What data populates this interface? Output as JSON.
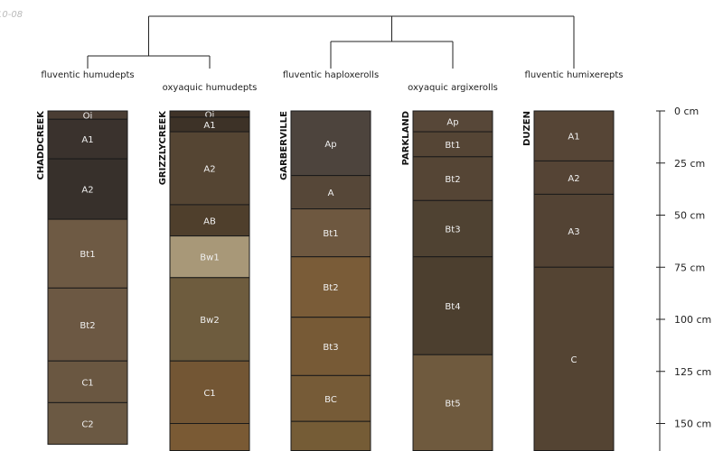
{
  "date_stamp": "10-08",
  "chart_data": {
    "type": "soil-profile-sketch",
    "depth_axis": {
      "unit": "cm",
      "ticks": [
        {
          "value": 0,
          "label": "0 cm"
        },
        {
          "value": 25,
          "label": "25 cm"
        },
        {
          "value": 50,
          "label": "50 cm"
        },
        {
          "value": 75,
          "label": "75 cm"
        },
        {
          "value": 100,
          "label": "100 cm"
        },
        {
          "value": 125,
          "label": "125 cm"
        },
        {
          "value": 150,
          "label": "150 cm"
        }
      ],
      "range": [
        0,
        163
      ]
    },
    "dendrogram": {
      "tree": [
        "CHADDCREEK",
        [
          "GRIZZLYCREEK"
        ],
        [
          "GARBERVILLE",
          "PARKLAND"
        ],
        "DUZEN"
      ],
      "groups": [
        [
          "CHADDCREEK",
          "GRIZZLYCREEK"
        ],
        [
          "GARBERVILLE",
          "PARKLAND"
        ],
        [
          "DUZEN"
        ]
      ]
    },
    "profiles": [
      {
        "name": "CHADDCREEK",
        "taxon": "fluventic humudepts",
        "horizons": [
          {
            "name": "Oi",
            "top": 0,
            "bottom": 4,
            "color": "#4a3d33"
          },
          {
            "name": "A1",
            "top": 4,
            "bottom": 23,
            "color": "#3a322d"
          },
          {
            "name": "A2",
            "top": 23,
            "bottom": 52,
            "color": "#37302b"
          },
          {
            "name": "Bt1",
            "top": 52,
            "bottom": 85,
            "color": "#6e5a44"
          },
          {
            "name": "Bt2",
            "top": 85,
            "bottom": 120,
            "color": "#6c5843"
          },
          {
            "name": "C1",
            "top": 120,
            "bottom": 140,
            "color": "#6a5741"
          },
          {
            "name": "C2",
            "top": 140,
            "bottom": 160,
            "color": "#6b5943"
          }
        ]
      },
      {
        "name": "GRIZZLYCREEK",
        "taxon": "oxyaquic humudepts",
        "horizons": [
          {
            "name": "Oi",
            "top": 0,
            "bottom": 3,
            "color": "#3f3328"
          },
          {
            "name": "A1",
            "top": 3,
            "bottom": 10,
            "color": "#3d3227"
          },
          {
            "name": "A2",
            "top": 10,
            "bottom": 45,
            "color": "#554533"
          },
          {
            "name": "AB",
            "top": 45,
            "bottom": 60,
            "color": "#4f3f2c"
          },
          {
            "name": "Bw1",
            "top": 60,
            "bottom": 80,
            "color": "#a89878"
          },
          {
            "name": "Bw2",
            "top": 80,
            "bottom": 120,
            "color": "#6e5c3e"
          },
          {
            "name": "C1",
            "top": 120,
            "bottom": 150,
            "color": "#735634"
          },
          {
            "name": "",
            "top": 150,
            "bottom": 163,
            "color": "#7a5a34"
          }
        ]
      },
      {
        "name": "GARBERVILLE",
        "taxon": "fluventic haploxerolls",
        "horizons": [
          {
            "name": "Ap",
            "top": 0,
            "bottom": 31,
            "color": "#4d443d"
          },
          {
            "name": "A",
            "top": 31,
            "bottom": 47,
            "color": "#564738"
          },
          {
            "name": "Bt1",
            "top": 47,
            "bottom": 70,
            "color": "#6e5840"
          },
          {
            "name": "Bt2",
            "top": 70,
            "bottom": 99,
            "color": "#7a5c38"
          },
          {
            "name": "Bt3",
            "top": 99,
            "bottom": 127,
            "color": "#775a36"
          },
          {
            "name": "BC",
            "top": 127,
            "bottom": 149,
            "color": "#765b37"
          },
          {
            "name": "",
            "top": 149,
            "bottom": 163,
            "color": "#755c36"
          }
        ]
      },
      {
        "name": "PARKLAND",
        "taxon": "oxyaquic argixerolls",
        "horizons": [
          {
            "name": "Ap",
            "top": 0,
            "bottom": 10,
            "color": "#574738"
          },
          {
            "name": "Bt1",
            "top": 10,
            "bottom": 22,
            "color": "#554535"
          },
          {
            "name": "Bt2",
            "top": 22,
            "bottom": 43,
            "color": "#554535"
          },
          {
            "name": "Bt3",
            "top": 43,
            "bottom": 70,
            "color": "#4f4232"
          },
          {
            "name": "Bt4",
            "top": 70,
            "bottom": 117,
            "color": "#4c3f2f"
          },
          {
            "name": "Bt5",
            "top": 117,
            "bottom": 163,
            "color": "#6f5a3e"
          }
        ]
      },
      {
        "name": "DUZEN",
        "taxon": "fluventic humixerepts",
        "horizons": [
          {
            "name": "A1",
            "top": 0,
            "bottom": 24,
            "color": "#564536"
          },
          {
            "name": "A2",
            "top": 24,
            "bottom": 40,
            "color": "#554435"
          },
          {
            "name": "A3",
            "top": 40,
            "bottom": 75,
            "color": "#534334"
          },
          {
            "name": "C",
            "top": 75,
            "bottom": 163,
            "color": "#544433"
          }
        ]
      }
    ]
  }
}
